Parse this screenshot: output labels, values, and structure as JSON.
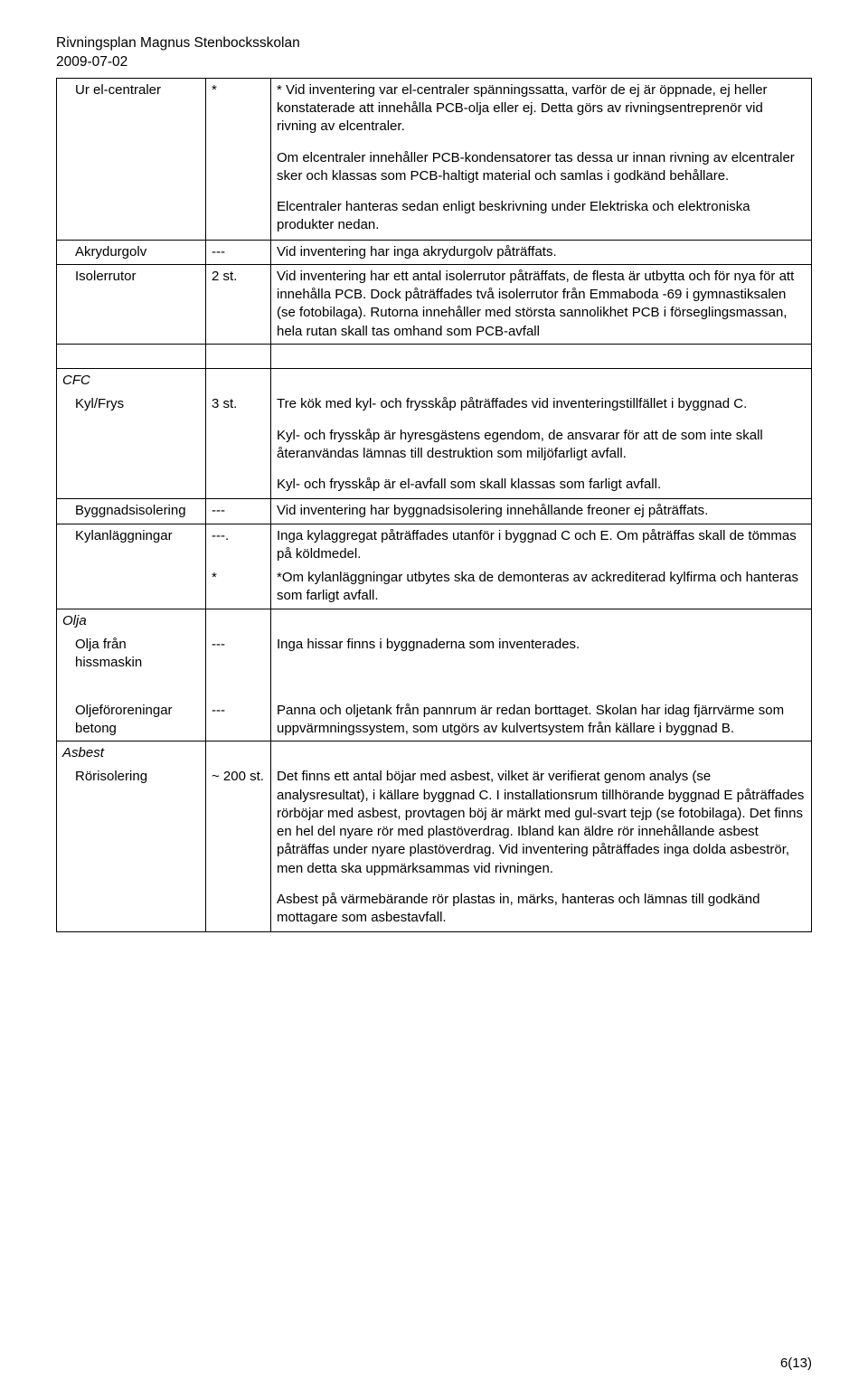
{
  "header": {
    "title": "Rivningsplan Magnus Stenbocksskolan",
    "date": "2009-07-02"
  },
  "rows": {
    "ur_el": {
      "label": "Ur el-centraler",
      "qty": "*",
      "p1": "* Vid inventering var el-centraler spänningssatta, varför de ej är öppnade, ej heller konstaterade att innehålla PCB-olja eller ej. Detta görs av rivningsentreprenör vid rivning av elcentraler.",
      "p2": "Om elcentraler innehåller PCB-kondensatorer tas dessa ur innan rivning av elcentraler sker och klassas som PCB-haltigt material och samlas i godkänd behållare.",
      "p3": "Elcentraler hanteras sedan enligt beskrivning under Elektriska och elektroniska produkter nedan."
    },
    "akryd": {
      "label": "Akrydurgolv",
      "qty": "---",
      "p1": "Vid inventering har inga akrydurgolv påträffats."
    },
    "isoler": {
      "label": "Isolerrutor",
      "qty": "2 st.",
      "p1": "Vid inventering har ett antal isolerrutor påträffats, de flesta är utbytta och för nya för att innehålla PCB. Dock påträffades två isolerrutor från Emmaboda -69 i gymnastiksalen (se fotobilaga). Rutorna innehåller med största sannolikhet PCB i förseglingsmassan, hela rutan skall tas omhand som PCB-avfall"
    },
    "cfc_head": "CFC",
    "kylfrys": {
      "label": "Kyl/Frys",
      "qty": "3 st.",
      "p1": "Tre kök med kyl- och frysskåp påträffades vid inventeringstillfället i byggnad C.",
      "p2": "Kyl- och frysskåp är hyresgästens egendom, de ansvarar för att de som inte skall återanvändas lämnas till destruktion som miljöfarligt avfall.",
      "p3": "Kyl- och frysskåp är el-avfall som skall klassas som farligt avfall."
    },
    "byggiso": {
      "label": "Byggnadsisolering",
      "qty": "---",
      "p1": "Vid inventering har byggnadsisolering innehållande freoner ej påträffats."
    },
    "kylan": {
      "label": "Kylanläggningar",
      "qty1": "---.",
      "p1": "Inga kylaggregat påträffades utanför i byggnad C och E. Om påträffas skall de tömmas på köldmedel.",
      "qty2": "*",
      "p2": "*Om kylanläggningar utbytes ska de demonteras av ackrediterad kylfirma och hanteras som farligt avfall."
    },
    "olja_head": "Olja",
    "oljahiss": {
      "label1": "Olja från",
      "label2": "hissmaskin",
      "qty": "---",
      "p1": "Inga hissar finns i byggnaderna som inventerades."
    },
    "oljebetong": {
      "label1": "Oljeföroreningar",
      "label2": "betong",
      "qty": "---",
      "p1": "Panna och oljetank från pannrum är redan borttaget. Skolan har idag fjärrvärme som uppvärmningssystem, som utgörs av kulvertsystem från källare i byggnad B."
    },
    "asbest_head": "Asbest",
    "roriso": {
      "label": "Rörisolering",
      "qty": "~ 200 st.",
      "p1": "Det finns ett antal böjar med asbest, vilket är verifierat genom analys (se analysresultat), i källare byggnad C. I installationsrum tillhörande byggnad E påträffades rörböjar med asbest, provtagen böj är märkt med gul-svart tejp (se fotobilaga). Det finns en hel del nyare rör med plastöverdrag. Ibland kan äldre rör innehållande asbest påträffas under nyare plastöverdrag. Vid inventering påträffades inga dolda asbeströr, men detta ska uppmärksammas vid rivningen.",
      "p2": "Asbest på värmebärande rör plastas in, märks, hanteras och lämnas till godkänd mottagare som asbestavfall."
    }
  },
  "footer": "6(13)"
}
